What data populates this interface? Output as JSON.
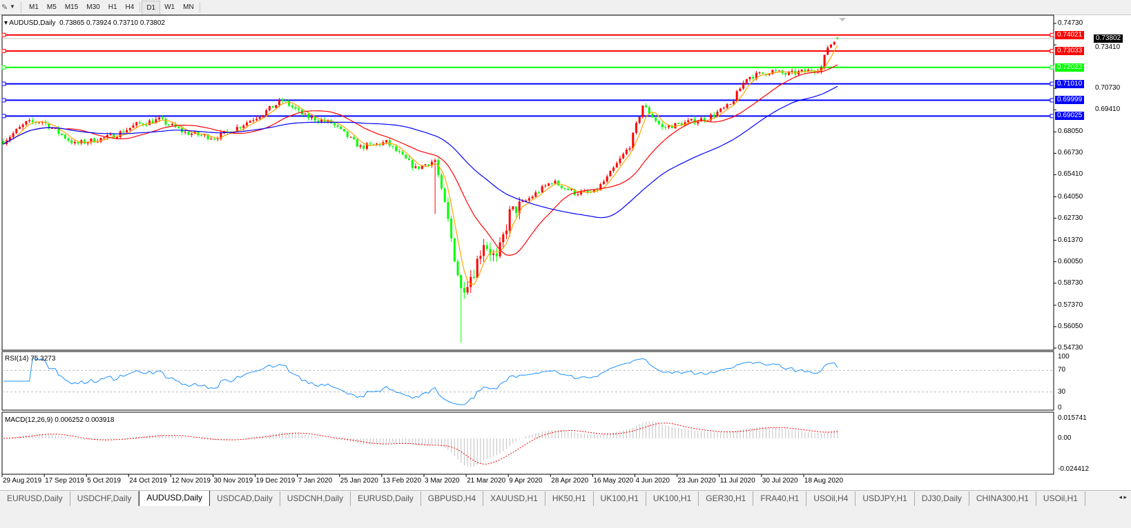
{
  "toolbar": {
    "tools_icon": "drawing-tools-icon",
    "periods": [
      "M1",
      "M5",
      "M15",
      "M30",
      "H1",
      "H4",
      "D1",
      "W1",
      "MN"
    ],
    "active_period": "D1"
  },
  "chart": {
    "symbol_header": "AUDUSD,Daily",
    "ohlc": "0.73865 0.73924 0.73710 0.73802",
    "current_price": "0.73802",
    "bull_color": "#ff0000",
    "bear_color": "#00ff00",
    "price_ticks": [
      "0.74730",
      "0.73410",
      "0.70730",
      "0.69410",
      "0.68050",
      "0.66730",
      "0.65410",
      "0.64050",
      "0.62730",
      "0.61370",
      "0.60050",
      "0.58730",
      "0.57370",
      "0.56050",
      "0.54730"
    ],
    "levels": [
      {
        "value": "0.74021",
        "color": "#ff0000"
      },
      {
        "value": "0.73033",
        "color": "#ff0000"
      },
      {
        "value": "0.72022",
        "color": "#00ff00"
      },
      {
        "value": "0.71010",
        "color": "#0000ff"
      },
      {
        "value": "0.69999",
        "color": "#0000ff"
      },
      {
        "value": "0.69025",
        "color": "#0000ff"
      }
    ],
    "moving_average_colors": [
      "#ffa500",
      "#ff0000",
      "#0000ff"
    ],
    "date_ticks": [
      "29 Aug 2019",
      "17 Sep 2019",
      "5 Oct 2019",
      "24 Oct 2019",
      "12 Nov 2019",
      "30 Nov 2019",
      "19 Dec 2019",
      "7 Jan 2020",
      "25 Jan 2020",
      "13 Feb 2020",
      "3 Mar 2020",
      "21 Mar 2020",
      "9 Apr 2020",
      "28 Apr 2020",
      "16 May 2020",
      "4 Jun 2020",
      "23 Jun 2020",
      "11 Jul 2020",
      "30 Jul 2020",
      "18 Aug 2020"
    ],
    "close_path": [
      [
        0,
        0.6747
      ],
      [
        7,
        0.686
      ],
      [
        12,
        0.687
      ],
      [
        22,
        0.673
      ],
      [
        34,
        0.678
      ],
      [
        41,
        0.685
      ],
      [
        48,
        0.688
      ],
      [
        56,
        0.68
      ],
      [
        65,
        0.677
      ],
      [
        71,
        0.682
      ],
      [
        80,
        0.692
      ],
      [
        86,
        0.7
      ],
      [
        93,
        0.69
      ],
      [
        101,
        0.686
      ],
      [
        110,
        0.671
      ],
      [
        118,
        0.674
      ],
      [
        127,
        0.658
      ],
      [
        133,
        0.663
      ],
      [
        137,
        0.625
      ],
      [
        141,
        0.583
      ],
      [
        145,
        0.595
      ],
      [
        148,
        0.613
      ],
      [
        152,
        0.601
      ],
      [
        156,
        0.63
      ],
      [
        161,
        0.638
      ],
      [
        169,
        0.65
      ],
      [
        176,
        0.643
      ],
      [
        182,
        0.643
      ],
      [
        186,
        0.652
      ],
      [
        193,
        0.672
      ],
      [
        197,
        0.697
      ],
      [
        203,
        0.683
      ],
      [
        210,
        0.686
      ],
      [
        217,
        0.689
      ],
      [
        224,
        0.697
      ],
      [
        229,
        0.714
      ],
      [
        237,
        0.718
      ],
      [
        241,
        0.716
      ],
      [
        248,
        0.718
      ],
      [
        252,
        0.72
      ],
      [
        254,
        0.733
      ],
      [
        257,
        0.738
      ]
    ]
  },
  "rsi": {
    "label": "RSI(14) 75.3273",
    "ticks": [
      "100",
      "70",
      "30",
      "0"
    ],
    "color": "#1e90ff"
  },
  "macd": {
    "label": "MACD(12,26,9) 0.006252 0.003918",
    "ticks": [
      "0.015741",
      "0.00",
      "-0.024412"
    ],
    "signal_color": "#ff0000",
    "histogram_color": "#c0c0c0"
  },
  "tabs": [
    "EURUSD,Daily",
    "USDCHF,Daily",
    "AUDUSD,Daily",
    "USDCAD,Daily",
    "USDCNH,Daily",
    "EURUSD,Daily",
    "GBPUSD,H4",
    "XAUUSD,H1",
    "HK50,H1",
    "UK100,H1",
    "UK100,H1",
    "GER30,H1",
    "FRA40,H1",
    "USOil,H4",
    "USDJPY,H1",
    "DJ30,Daily",
    "CHINA300,H1",
    "USOil,H1"
  ],
  "active_tab": "AUDUSD,Daily"
}
